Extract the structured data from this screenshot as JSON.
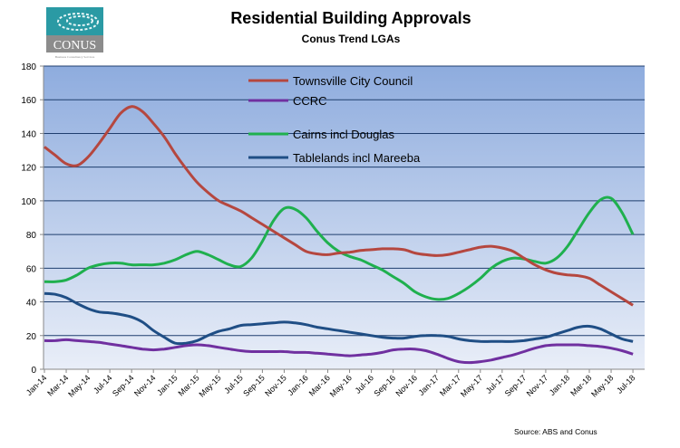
{
  "logo": {
    "text": "CONUS",
    "tagline": "Business Consultancy Services",
    "colors": {
      "teal": "#2a9aa4",
      "grey": "#8c8c8c"
    }
  },
  "source": "Source: ABS and Conus",
  "chart_data": {
    "type": "line",
    "title": "Residential Building Approvals",
    "subtitle": "Conus Trend LGAs",
    "xlabel": "",
    "ylabel": "",
    "ylim": [
      0,
      180
    ],
    "yticks": [
      0,
      20,
      40,
      60,
      80,
      100,
      120,
      140,
      160,
      180
    ],
    "grid": true,
    "legend_position": "top-center (inside plot)",
    "x_tick_labels": [
      "Jan-14",
      "Mar-14",
      "May-14",
      "Jul-14",
      "Sep-14",
      "Nov-14",
      "Jan-15",
      "Mar-15",
      "May-15",
      "Jul-15",
      "Sep-15",
      "Nov-15",
      "Jan-16",
      "Mar-16",
      "May-16",
      "Jul-16",
      "Sep-16",
      "Nov-16",
      "Jan-17",
      "Mar-17",
      "May-17",
      "Jul-17",
      "Sep-17",
      "Nov-17",
      "Jan-18",
      "Mar-18",
      "May-18",
      "Jul-18"
    ],
    "x_range": [
      "Jan-14",
      "Jul-18"
    ],
    "x_frequency": "monthly",
    "series": [
      {
        "name": "Townsville City Council",
        "color": "#b5473f",
        "values": [
          132,
          127,
          122,
          121,
          126,
          134,
          143,
          152,
          156,
          153,
          146,
          138,
          128,
          119,
          111,
          105,
          100,
          97,
          94,
          90,
          86,
          82,
          78,
          74,
          70,
          68.5,
          68,
          69,
          69.5,
          70.5,
          71,
          71.5,
          71.5,
          71,
          69,
          68,
          67.5,
          68,
          69.5,
          71,
          72.5,
          73,
          72,
          70,
          66,
          62,
          59,
          57,
          56,
          55.5,
          54,
          50,
          46,
          42,
          38
        ]
      },
      {
        "name": "CCRC",
        "color": "#7030a0",
        "values": [
          17,
          17,
          17.5,
          17,
          16.5,
          16,
          15,
          14,
          13,
          12,
          11.5,
          12,
          13,
          14,
          14.5,
          14,
          13,
          12,
          11,
          10.5,
          10.5,
          10.5,
          10.5,
          10,
          10,
          9.5,
          9,
          8.5,
          8,
          8.5,
          9,
          10,
          11.5,
          12,
          12,
          11,
          9,
          6.5,
          4.5,
          4,
          4.5,
          5.5,
          7,
          8.5,
          10.5,
          12.5,
          14,
          14.5,
          14.5,
          14.5,
          14,
          13.5,
          12.5,
          11,
          9
        ]
      },
      {
        "name": "Cairns incl Douglas",
        "color": "#1fb04e",
        "values": [
          52,
          52,
          53,
          56,
          60,
          62,
          63,
          63,
          62,
          62,
          62,
          63,
          65,
          68,
          70,
          68,
          65,
          62,
          61,
          66,
          76,
          88,
          95.5,
          95,
          90,
          82,
          75,
          70,
          67,
          65,
          62,
          59,
          55,
          51,
          46,
          43,
          41.5,
          42,
          45,
          49,
          54,
          60,
          64,
          66,
          65.5,
          64,
          63,
          66,
          73,
          83,
          93,
          100.5,
          101.5,
          93,
          80
        ]
      },
      {
        "name": "Tablelands incl Mareeba",
        "color": "#1f4e85",
        "values": [
          45,
          44.5,
          42.5,
          39,
          36,
          34,
          33.5,
          32.5,
          31,
          28,
          23,
          19,
          15.5,
          15.5,
          17,
          20,
          22.5,
          24,
          26,
          26.5,
          27,
          27.5,
          28,
          27.5,
          26.5,
          25,
          24,
          23,
          22,
          21,
          20,
          19,
          18.5,
          18.5,
          19.5,
          20,
          20,
          19.5,
          18,
          17,
          16.5,
          16.5,
          16.5,
          16.5,
          17,
          18,
          19,
          21,
          23,
          25,
          25.5,
          24,
          21,
          18,
          16.5
        ]
      }
    ]
  }
}
